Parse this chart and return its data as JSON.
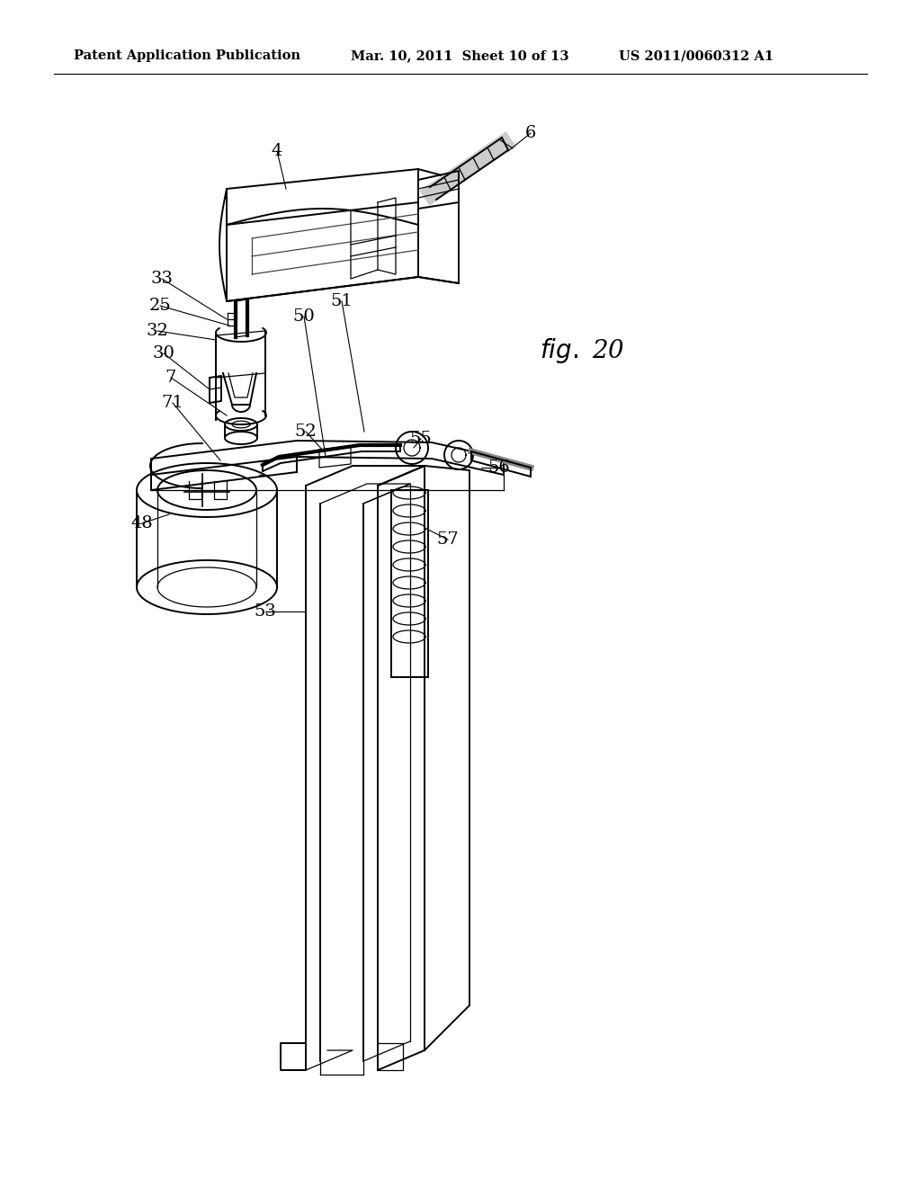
{
  "background_color": "#ffffff",
  "header_left": "Patent Application Publication",
  "header_center": "Mar. 10, 2011  Sheet 10 of 13",
  "header_right": "US 2011/0060312 A1",
  "fig_label": "fig. 20"
}
